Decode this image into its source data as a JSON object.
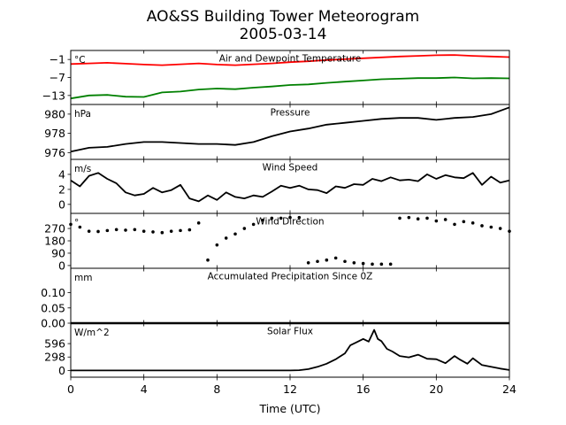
{
  "figure": {
    "title_line1": "AO&SS Building Tower Meteorogram",
    "title_line2": "2005-03-14",
    "xlabel": "Time (UTC)"
  },
  "chart_data": [
    {
      "type": "line",
      "title": "Air and Dewpoint Temperature",
      "unit": "°C",
      "yticks": [
        "−1",
        "−7",
        "−13"
      ],
      "ytick_values": [
        -1,
        -7,
        -13
      ],
      "ylim": [
        -16,
        2
      ],
      "xlim": [
        0,
        24
      ],
      "xticks": [
        "0",
        "4",
        "8",
        "12",
        "16",
        "20",
        "24"
      ],
      "xtick_values": [
        0,
        4,
        8,
        12,
        16,
        20,
        24
      ],
      "series": [
        {
          "color": "#ff0000",
          "x": [
            0,
            1,
            2,
            3,
            4,
            5,
            6,
            7,
            8,
            9,
            10,
            11,
            12,
            13,
            14,
            15,
            16,
            17,
            18,
            19,
            20,
            21,
            22,
            23,
            24
          ],
          "y": [
            -2.5,
            -2.3,
            -2.1,
            -2.4,
            -2.7,
            -2.9,
            -2.6,
            -2.3,
            -2.7,
            -2.9,
            -2.6,
            -2.3,
            -1.9,
            -1.6,
            -1.2,
            -0.9,
            -0.6,
            -0.3,
            0.0,
            0.2,
            0.4,
            0.5,
            0.2,
            0.0,
            -0.2
          ]
        },
        {
          "color": "#008000",
          "x": [
            0,
            1,
            2,
            3,
            4,
            5,
            6,
            7,
            8,
            9,
            10,
            11,
            12,
            13,
            14,
            15,
            16,
            17,
            18,
            19,
            20,
            21,
            22,
            23,
            24
          ],
          "y": [
            -14.0,
            -13.0,
            -12.8,
            -13.4,
            -13.5,
            -12.0,
            -11.7,
            -11.0,
            -10.7,
            -10.9,
            -10.4,
            -10.0,
            -9.5,
            -9.3,
            -8.8,
            -8.4,
            -8.0,
            -7.6,
            -7.4,
            -7.2,
            -7.2,
            -7.0,
            -7.3,
            -7.2,
            -7.3
          ]
        }
      ]
    },
    {
      "type": "line",
      "title": "Pressure",
      "unit": "hPa",
      "yticks": [
        "980",
        "978",
        "976"
      ],
      "ytick_values": [
        980,
        978,
        976
      ],
      "ylim": [
        975.3,
        981.0
      ],
      "series": [
        {
          "color": "#000000",
          "x": [
            0,
            1,
            2,
            3,
            4,
            5,
            6,
            7,
            8,
            9,
            10,
            11,
            12,
            13,
            14,
            15,
            16,
            17,
            18,
            19,
            20,
            21,
            22,
            23,
            24
          ],
          "y": [
            976.1,
            976.5,
            976.6,
            976.9,
            977.1,
            977.1,
            977.0,
            976.9,
            976.9,
            976.8,
            977.1,
            977.7,
            978.2,
            978.5,
            978.9,
            979.1,
            979.3,
            979.5,
            979.6,
            979.6,
            979.4,
            979.6,
            979.7,
            980.0,
            980.7
          ]
        }
      ]
    },
    {
      "type": "line",
      "title": "Wind Speed",
      "unit": "m/s",
      "yticks": [
        "4",
        "2",
        "0"
      ],
      "ytick_values": [
        4,
        2,
        0
      ],
      "ylim": [
        -1.2,
        6.0
      ],
      "series": [
        {
          "color": "#000000",
          "x": [
            0,
            0.5,
            1,
            1.5,
            2,
            2.5,
            3,
            3.5,
            4,
            4.5,
            5,
            5.5,
            6,
            6.5,
            7,
            7.5,
            8,
            8.5,
            9,
            9.5,
            10,
            10.5,
            11,
            11.5,
            12,
            12.5,
            13,
            13.5,
            14,
            14.5,
            15,
            15.5,
            16,
            16.5,
            17,
            17.5,
            18,
            18.5,
            19,
            19.5,
            20,
            20.5,
            21,
            21.5,
            22,
            22.5,
            23,
            23.5,
            24
          ],
          "y": [
            3.2,
            2.4,
            3.8,
            4.2,
            3.4,
            2.8,
            1.6,
            1.2,
            1.4,
            2.2,
            1.6,
            1.9,
            2.6,
            0.8,
            0.4,
            1.2,
            0.6,
            1.6,
            1.0,
            0.8,
            1.2,
            1.0,
            1.7,
            2.5,
            2.2,
            2.5,
            2.0,
            1.9,
            1.5,
            2.4,
            2.2,
            2.7,
            2.6,
            3.4,
            3.1,
            3.6,
            3.2,
            3.3,
            3.1,
            4.0,
            3.4,
            3.9,
            3.6,
            3.5,
            4.2,
            2.6,
            3.7,
            2.9,
            3.2
          ]
        }
      ]
    },
    {
      "type": "scatter",
      "title": "Wind Direction",
      "unit": "°",
      "yticks": [
        "270",
        "180",
        "90",
        "0"
      ],
      "ytick_values": [
        270,
        180,
        90,
        0
      ],
      "ylim": [
        -20,
        380
      ],
      "series": [
        {
          "color": "#000000",
          "x": [
            0,
            0.5,
            1,
            1.5,
            2,
            2.5,
            3,
            3.5,
            4,
            4.5,
            5,
            5.5,
            6,
            6.5,
            7.0,
            7.5,
            8,
            8.5,
            9,
            9.5,
            10,
            10.5,
            11,
            11.5,
            12,
            12.5,
            13,
            13.5,
            14,
            14.5,
            15,
            15.5,
            16,
            16.5,
            17,
            17.5,
            18,
            18.5,
            19,
            19.5,
            20,
            20.5,
            21,
            21.5,
            22,
            22.5,
            23,
            23.5,
            24
          ],
          "y": [
            300,
            280,
            250,
            248,
            255,
            262,
            258,
            262,
            250,
            245,
            240,
            250,
            255,
            260,
            310,
            40,
            150,
            200,
            230,
            270,
            300,
            330,
            345,
            345,
            350,
            350,
            20,
            30,
            40,
            55,
            30,
            20,
            15,
            10,
            10,
            10,
            345,
            350,
            340,
            345,
            325,
            335,
            300,
            320,
            310,
            290,
            280,
            270,
            250
          ]
        }
      ]
    },
    {
      "type": "line",
      "title": "Accumulated Precipitation Since 0Z",
      "unit": "mm",
      "yticks": [
        "0.10",
        "0.05",
        "0.00"
      ],
      "ytick_values": [
        0.1,
        0.05,
        0.0
      ],
      "ylim": [
        0,
        0.18
      ],
      "series": [
        {
          "color": "#000000",
          "x": [
            0,
            24
          ],
          "y": [
            0.0,
            0.0
          ]
        }
      ]
    },
    {
      "type": "area",
      "title": "Solar Flux",
      "unit": "W/m^2",
      "yticks": [
        "596",
        "298",
        "0"
      ],
      "ytick_values": [
        596,
        298,
        0
      ],
      "ylim": [
        -150,
        1050
      ],
      "series": [
        {
          "color": "#000000",
          "x": [
            0,
            4,
            8,
            12,
            12.5,
            13,
            13.5,
            14,
            14.5,
            15,
            15.3,
            15.6,
            16,
            16.3,
            16.6,
            16.8,
            17,
            17.3,
            17.6,
            18,
            18.5,
            19,
            19.5,
            20,
            20.5,
            21,
            21.3,
            21.7,
            22,
            22.5,
            23,
            23.5,
            24
          ],
          "y": [
            0,
            0,
            0,
            0,
            5,
            30,
            80,
            150,
            250,
            380,
            560,
            620,
            700,
            640,
            900,
            700,
            650,
            480,
            420,
            320,
            290,
            350,
            260,
            250,
            160,
            320,
            240,
            150,
            270,
            120,
            80,
            40,
            10
          ]
        }
      ]
    }
  ]
}
